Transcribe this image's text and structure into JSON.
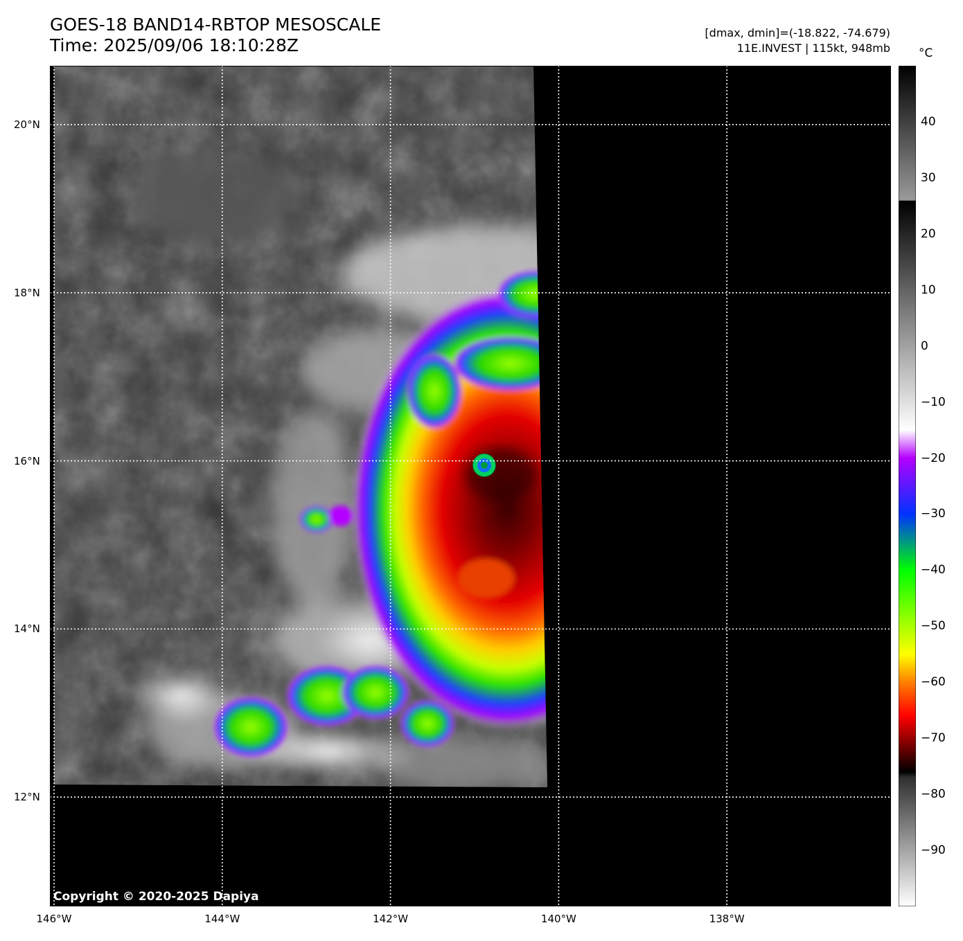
{
  "header": {
    "title_line1": "GOES-18 BAND14-RBTOP MESOSCALE",
    "title_line2": "Time: 2025/09/06 18:10:28Z",
    "info_line1": "[dmax, dmin]=(-18.822, -74.679)",
    "info_line2": "11E.INVEST | 115kt, 948mb"
  },
  "map": {
    "lon_range": [
      -146.0,
      -136.0
    ],
    "lat_range": [
      10.7,
      20.7
    ],
    "gridlines": true,
    "gridline_style": "dotted white",
    "copyright": "Copyright © 2020-2025 Dapiya",
    "x_ticks": [
      {
        "lon": -146,
        "label": "146°W"
      },
      {
        "lon": -144,
        "label": "144°W"
      },
      {
        "lon": -142,
        "label": "142°W"
      },
      {
        "lon": -140,
        "label": "140°W"
      },
      {
        "lon": -138,
        "label": "138°W"
      }
    ],
    "y_ticks": [
      {
        "lat": 20,
        "label": "20°N"
      },
      {
        "lat": 18,
        "label": "18°N"
      },
      {
        "lat": 16,
        "label": "16°N"
      },
      {
        "lat": 14,
        "label": "14°N"
      },
      {
        "lat": 12,
        "label": "12°N"
      }
    ],
    "storm": {
      "name": "11E.INVEST",
      "eye_lon": -140.9,
      "eye_lat": 15.93
    },
    "no_data_color": "#000000"
  },
  "colorbar": {
    "unit": "°C",
    "range": [
      -100,
      50
    ],
    "ticks": [
      {
        "value": 40,
        "label": "40"
      },
      {
        "value": 30,
        "label": "30"
      },
      {
        "value": 20,
        "label": "20"
      },
      {
        "value": 10,
        "label": "10"
      },
      {
        "value": 0,
        "label": "0"
      },
      {
        "value": -10,
        "label": "−10"
      },
      {
        "value": -20,
        "label": "−20"
      },
      {
        "value": -30,
        "label": "−30"
      },
      {
        "value": -40,
        "label": "−40"
      },
      {
        "value": -50,
        "label": "−50"
      },
      {
        "value": -60,
        "label": "−60"
      },
      {
        "value": -70,
        "label": "−70"
      },
      {
        "value": -80,
        "label": "−80"
      },
      {
        "value": -90,
        "label": "−90"
      }
    ],
    "stops": [
      {
        "value": 50,
        "color": "#000000"
      },
      {
        "value": 26,
        "color": "#9a9a9a"
      },
      {
        "value": 25.9,
        "color": "#000000"
      },
      {
        "value": -15,
        "color": "#ffffff"
      },
      {
        "value": -20,
        "color": "#b400ff"
      },
      {
        "value": -30,
        "color": "#0033ff"
      },
      {
        "value": -40,
        "color": "#00ff00"
      },
      {
        "value": -55,
        "color": "#ffff00"
      },
      {
        "value": -60,
        "color": "#ff8000"
      },
      {
        "value": -66,
        "color": "#ff0000"
      },
      {
        "value": -76,
        "color": "#000000"
      },
      {
        "value": -77,
        "color": "#303030"
      },
      {
        "value": -100,
        "color": "#ffffff"
      }
    ]
  }
}
